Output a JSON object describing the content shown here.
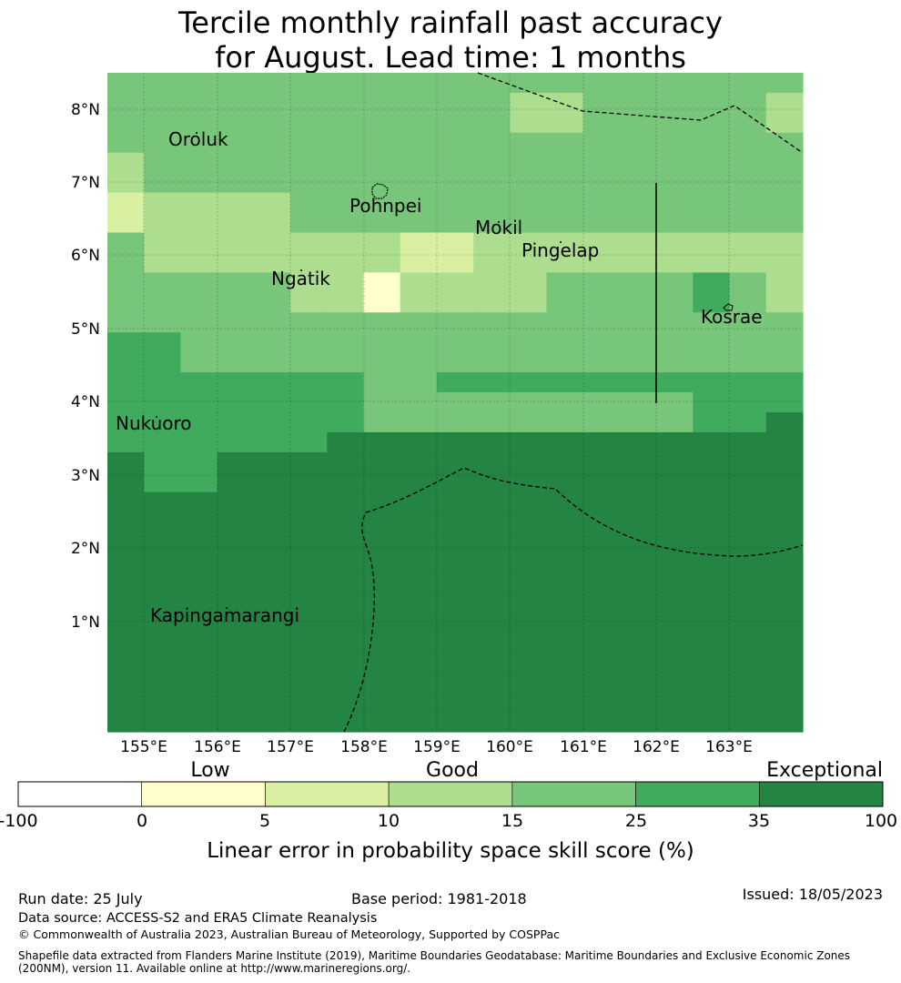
{
  "title": {
    "line1": "Tercile monthly rainfall past accuracy",
    "line2": "for August. Lead time: 1 months"
  },
  "map": {
    "lat_ticks": [
      "1°N",
      "2°N",
      "3°N",
      "4°N",
      "5°N",
      "6°N",
      "7°N",
      "8°N"
    ],
    "lon_ticks": [
      "155°E",
      "156°E",
      "157°E",
      "158°E",
      "159°E",
      "160°E",
      "161°E",
      "162°E",
      "163°E"
    ],
    "places": [
      {
        "name": "Oroluk"
      },
      {
        "name": "Pohnpei"
      },
      {
        "name": "Mokil"
      },
      {
        "name": "Pingelap"
      },
      {
        "name": "Ngatik"
      },
      {
        "name": "Kosrae"
      },
      {
        "name": "Nukuoro"
      },
      {
        "name": "Kapingamarangi"
      }
    ],
    "category_colors": {
      "c0": "#ffffff",
      "c1": "#ffffcc",
      "c2": "#d9f0a3",
      "c3": "#addd8e",
      "c4": "#78c679",
      "c5": "#41ab5d",
      "c6": "#238443"
    },
    "grid": [
      "4444444444444444444",
      "4444444444433444443",
      "4444444444433444443",
      "4444444444444444444",
      "3444444444444444444",
      "3444444444444444444",
      "2333344444444444444",
      "2333344444444444444",
      "4333333322333333333",
      "4333333322333333333",
      "4444433133334444543",
      "4444433133334444543",
      "4444444444444444444",
      "5544444444444444444",
      "5544444444444444444",
      "5555555445555555555",
      "5555555444444444555",
      "5555555444444444556",
      "5555556666666666666",
      "6556666666666666666",
      "6556666666666666666",
      "6666666666666666666",
      "6666666666666666666",
      "6666666666666666666",
      "6666666666666666666",
      "6666666666666666666",
      "6666666666666666666",
      "6666666666666666666",
      "6666666666666666666",
      "6666666666666666666",
      "6666666666666666666",
      "6666666666666666666",
      "6666666666666666666"
    ]
  },
  "legend": {
    "categories": [
      "Low",
      "Good",
      "Exceptional"
    ],
    "ticks": [
      "-100",
      "0",
      "5",
      "10",
      "15",
      "25",
      "35",
      "100"
    ],
    "colors": [
      "#ffffff",
      "#ffffcc",
      "#d9f0a3",
      "#addd8e",
      "#78c679",
      "#41ab5d",
      "#238443"
    ],
    "label": "Linear error in probability space skill score (%)"
  },
  "footer": {
    "run_date": "Run date: 25 July",
    "base_period": "Base period: 1981-2018",
    "issued": "Issued: 18/05/2023",
    "data_source": "Data source: ACCESS-S2 and ERA5 Climate Reanalysis",
    "copyright": "© Commonwealth of Australia 2023, Australian Bureau of Meteorology, Supported by COSPPac",
    "shapefile": "Shapefile data extracted from Flanders Marine Institute (2019), Maritime Boundaries Geodatabase: Maritime Boundaries and Exclusive Economic Zones (200NM), version 11. Available online at http://www.marineregions.org/."
  }
}
